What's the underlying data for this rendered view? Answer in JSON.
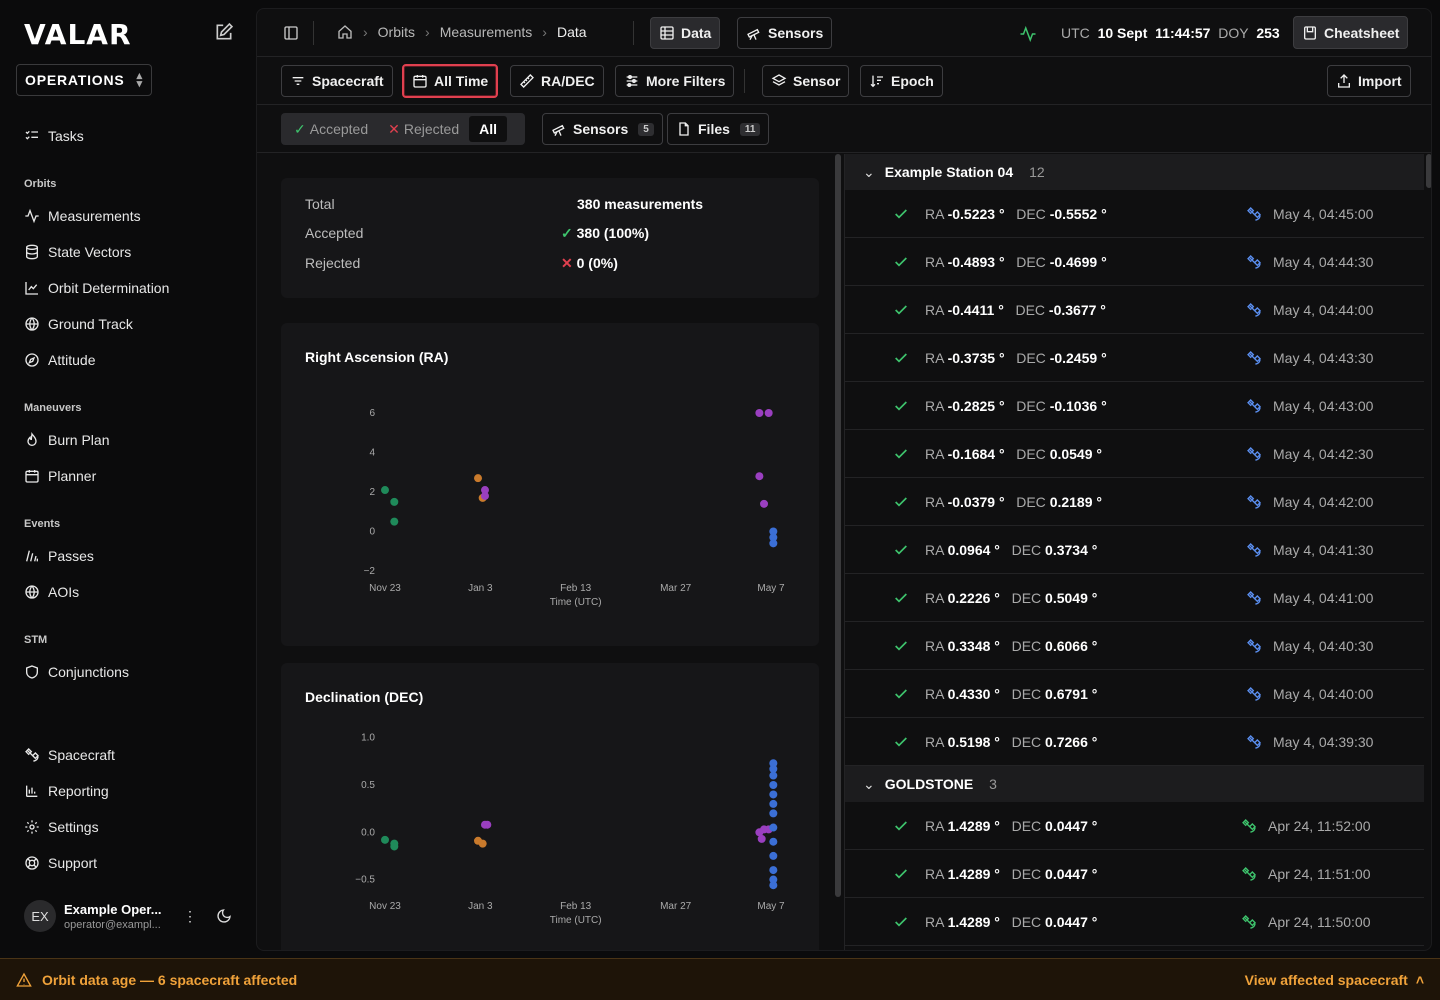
{
  "app": {
    "logo": "VALAR",
    "workspace": "OPERATIONS"
  },
  "sidebar": {
    "top_items": [
      {
        "label": "Tasks",
        "icon": "list-checks-icon"
      }
    ],
    "sections": [
      {
        "title": "Orbits",
        "items": [
          {
            "label": "Measurements",
            "icon": "activity-icon"
          },
          {
            "label": "State Vectors",
            "icon": "database-icon"
          },
          {
            "label": "Orbit Determination",
            "icon": "line-chart-icon"
          },
          {
            "label": "Ground Track",
            "icon": "globe-icon"
          },
          {
            "label": "Attitude",
            "icon": "compass-icon"
          }
        ]
      },
      {
        "title": "Maneuvers",
        "items": [
          {
            "label": "Burn Plan",
            "icon": "flame-icon"
          },
          {
            "label": "Planner",
            "icon": "calendar-icon"
          }
        ]
      },
      {
        "title": "Events",
        "items": [
          {
            "label": "Passes",
            "icon": "signal-icon"
          },
          {
            "label": "AOIs",
            "icon": "globe-icon"
          }
        ]
      },
      {
        "title": "STM",
        "items": [
          {
            "label": "Conjunctions",
            "icon": "shield-icon"
          }
        ]
      }
    ],
    "bottom_items": [
      {
        "label": "Spacecraft",
        "icon": "satellite-icon"
      },
      {
        "label": "Reporting",
        "icon": "bar-chart-icon"
      },
      {
        "label": "Settings",
        "icon": "gear-icon"
      },
      {
        "label": "Support",
        "icon": "lifebuoy-icon"
      }
    ],
    "user": {
      "initials": "EX",
      "name": "Example Oper...",
      "email": "operator@exampl..."
    }
  },
  "topbar": {
    "breadcrumbs": [
      "Orbits",
      "Measurements",
      "Data"
    ],
    "view_tabs": [
      {
        "label": "Data",
        "active": true
      },
      {
        "label": "Sensors",
        "active": false
      }
    ],
    "utc_label": "UTC",
    "date": "10 Sept",
    "time": "11:44:57",
    "doy_label": "DOY",
    "doy": "253",
    "cheatsheet": "Cheatsheet"
  },
  "filters": {
    "spacecraft": "Spacecraft",
    "time": "All Time",
    "radec": "RA/DEC",
    "more": "More Filters",
    "sensor": "Sensor",
    "epoch": "Epoch",
    "import": "Import"
  },
  "status_filter": {
    "accepted": "Accepted",
    "rejected": "Rejected",
    "all": "All",
    "sensors_label": "Sensors",
    "sensors_count": "5",
    "files_label": "Files",
    "files_count": "11"
  },
  "summary": {
    "total_label": "Total",
    "total_value": "380 measurements",
    "accepted_label": "Accepted",
    "accepted_value": "380 (100%)",
    "rejected_label": "Rejected",
    "rejected_value": "0 (0%)"
  },
  "chart_data": [
    {
      "type": "scatter",
      "title": "Right Ascension (RA)",
      "xlabel": "Time (UTC)",
      "x_ticks": [
        "Nov 23",
        "Jan 3",
        "Feb 13",
        "Mar 27",
        "May 7"
      ],
      "y_ticks": [
        "6",
        "4",
        "2",
        "0",
        "−2"
      ],
      "ylim": [
        -2,
        6
      ],
      "series": [
        {
          "color": "#1f8a5a",
          "points": [
            [
              "Nov 23",
              2.1
            ],
            [
              "Nov 27",
              1.5
            ],
            [
              "Nov 27",
              0.5
            ]
          ]
        },
        {
          "color": "#c97a2c",
          "points": [
            [
              "Jan 2",
              2.7
            ],
            [
              "Jan 4",
              1.7
            ]
          ]
        },
        {
          "color": "#9a3fc0",
          "points": [
            [
              "Jan 5",
              2.1
            ],
            [
              "Jan 5",
              1.8
            ],
            [
              "May 2",
              6.0
            ],
            [
              "May 6",
              6.0
            ],
            [
              "May 2",
              2.8
            ],
            [
              "May 4",
              1.4
            ]
          ]
        },
        {
          "color": "#3b6fd6",
          "points": [
            [
              "May 8",
              0.0
            ],
            [
              "May 8",
              -0.3
            ],
            [
              "May 8",
              -0.6
            ]
          ]
        }
      ]
    },
    {
      "type": "scatter",
      "title": "Declination (DEC)",
      "xlabel": "Time (UTC)",
      "x_ticks": [
        "Nov 23",
        "Jan 3",
        "Feb 13",
        "Mar 27",
        "May 7"
      ],
      "y_ticks": [
        "1.0",
        "0.5",
        "0.0",
        "−0.5"
      ],
      "ylim": [
        -0.6,
        1.05
      ],
      "series": [
        {
          "color": "#1f8a5a",
          "points": [
            [
              "Nov 23",
              -0.08
            ],
            [
              "Nov 27",
              -0.12
            ],
            [
              "Nov 27",
              -0.15
            ]
          ]
        },
        {
          "color": "#c97a2c",
          "points": [
            [
              "Jan 2",
              -0.09
            ],
            [
              "Jan 4",
              -0.12
            ]
          ]
        },
        {
          "color": "#9a3fc0",
          "points": [
            [
              "Jan 5",
              0.08
            ],
            [
              "Jan 6",
              0.08
            ],
            [
              "May 2",
              0.0
            ],
            [
              "May 3",
              -0.07
            ],
            [
              "May 4",
              0.03
            ],
            [
              "May 6",
              0.03
            ]
          ]
        },
        {
          "color": "#3b6fd6",
          "points": [
            [
              "May 8",
              0.73
            ],
            [
              "May 8",
              0.67
            ],
            [
              "May 8",
              0.6
            ],
            [
              "May 8",
              0.5
            ],
            [
              "May 8",
              0.4
            ],
            [
              "May 8",
              0.3
            ],
            [
              "May 8",
              0.2
            ],
            [
              "May 8",
              0.05
            ],
            [
              "May 8",
              -0.1
            ],
            [
              "May 8",
              -0.25
            ],
            [
              "May 8",
              -0.4
            ],
            [
              "May 8",
              -0.5
            ],
            [
              "May 8",
              -0.56
            ]
          ]
        }
      ]
    }
  ],
  "groups": [
    {
      "name": "Example Station 04",
      "count": "12",
      "sat_color": "#5b8ff0",
      "rows": [
        {
          "ra": "-0.5223",
          "dec": "-0.5552",
          "time": "May 4, 04:45:00"
        },
        {
          "ra": "-0.4893",
          "dec": "-0.4699",
          "time": "May 4, 04:44:30"
        },
        {
          "ra": "-0.4411",
          "dec": "-0.3677",
          "time": "May 4, 04:44:00"
        },
        {
          "ra": "-0.3735",
          "dec": "-0.2459",
          "time": "May 4, 04:43:30"
        },
        {
          "ra": "-0.2825",
          "dec": "-0.1036",
          "time": "May 4, 04:43:00"
        },
        {
          "ra": "-0.1684",
          "dec": "0.0549",
          "time": "May 4, 04:42:30"
        },
        {
          "ra": "-0.0379",
          "dec": "0.2189",
          "time": "May 4, 04:42:00"
        },
        {
          "ra": "0.0964",
          "dec": "0.3734",
          "time": "May 4, 04:41:30"
        },
        {
          "ra": "0.2226",
          "dec": "0.5049",
          "time": "May 4, 04:41:00"
        },
        {
          "ra": "0.3348",
          "dec": "0.6066",
          "time": "May 4, 04:40:30"
        },
        {
          "ra": "0.4330",
          "dec": "0.6791",
          "time": "May 4, 04:40:00"
        },
        {
          "ra": "0.5198",
          "dec": "0.7266",
          "time": "May 4, 04:39:30"
        }
      ]
    },
    {
      "name": "GOLDSTONE",
      "count": "3",
      "sat_color": "#3ec46d",
      "rows": [
        {
          "ra": "1.4289",
          "dec": "0.0447",
          "time": "Apr 24, 11:52:00"
        },
        {
          "ra": "1.4289",
          "dec": "0.0447",
          "time": "Apr 24, 11:51:00"
        },
        {
          "ra": "1.4289",
          "dec": "0.0447",
          "time": "Apr 24, 11:50:00"
        }
      ]
    }
  ],
  "units": {
    "ra": "RA",
    "dec": "DEC",
    "deg": "°"
  },
  "alert": {
    "text": "Orbit data age — 6 spacecraft affected",
    "link": "View affected spacecraft"
  }
}
